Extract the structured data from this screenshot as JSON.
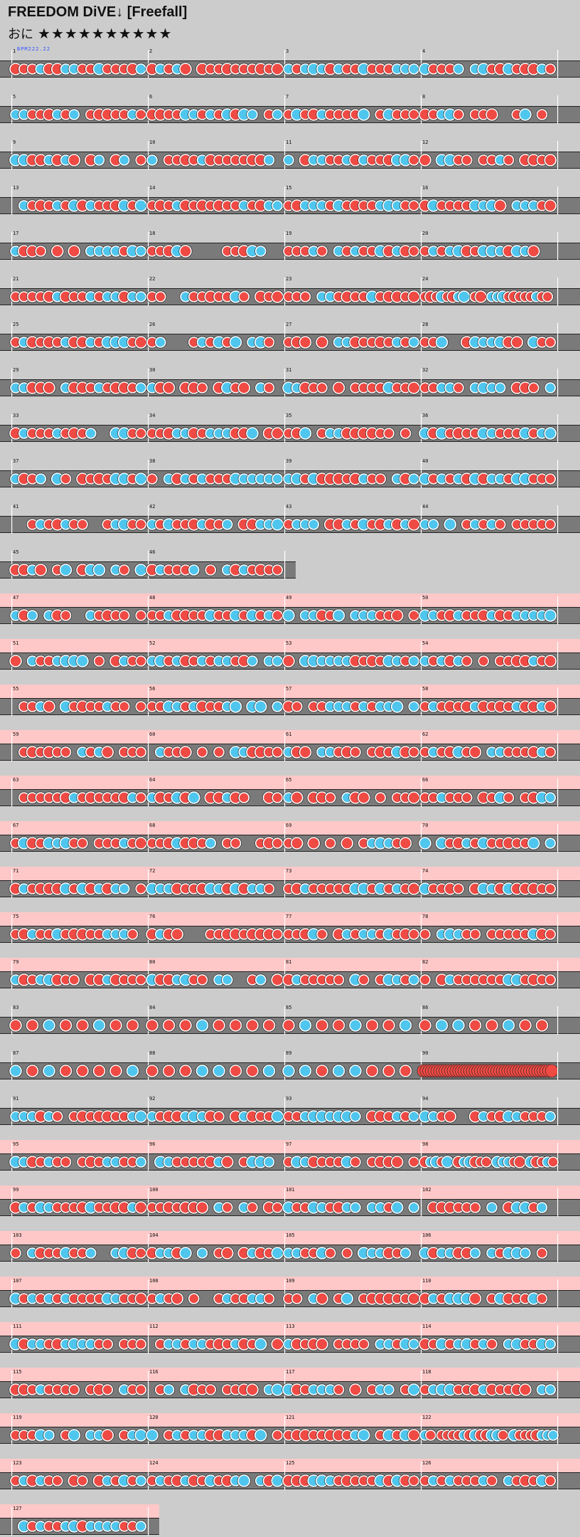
{
  "title": "FREEDOM DiVE↓ [Freefall]",
  "difficulty": {
    "label": "おに",
    "stars": 10,
    "star_glyph": "★"
  },
  "bpm_label": "BPM222.22",
  "colors": {
    "bg": "#cccccc",
    "lane": "#7a7a7a",
    "gogo": "#ffc8c8",
    "don": "#f04a44",
    "ka": "#4fc6ee",
    "measure_line": "#ffffff",
    "ink": "#111111"
  },
  "measures": {
    "total": 127,
    "per_row": 4,
    "short_rows": {
      "11": 2,
      "32": 1
    },
    "gogo_rows": [
      12,
      13,
      14,
      15,
      16,
      17,
      18,
      19,
      20,
      24,
      25,
      26,
      27,
      28,
      29,
      30,
      31,
      32
    ],
    "sparse_rows": [
      21,
      22
    ],
    "roll_measures": [
      90
    ],
    "fine_measures": [
      24,
      98,
      122
    ]
  }
}
